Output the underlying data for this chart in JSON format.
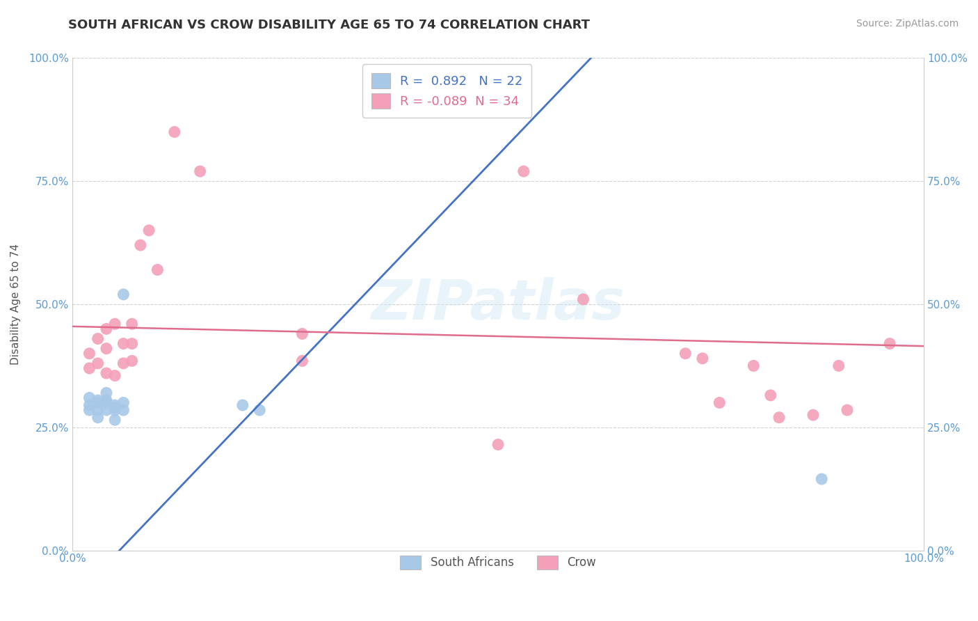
{
  "title": "SOUTH AFRICAN VS CROW DISABILITY AGE 65 TO 74 CORRELATION CHART",
  "source": "Source: ZipAtlas.com",
  "ylabel": "Disability Age 65 to 74",
  "xlim": [
    0.0,
    1.0
  ],
  "ylim": [
    0.0,
    1.0
  ],
  "xtick_labels": [
    "0.0%",
    "100.0%"
  ],
  "ytick_labels": [
    "0.0%",
    "25.0%",
    "50.0%",
    "75.0%",
    "100.0%"
  ],
  "ytick_positions": [
    0.0,
    0.25,
    0.5,
    0.75,
    1.0
  ],
  "blue_color": "#a8c8e8",
  "pink_color": "#f4a0b8",
  "blue_line_color": "#4472c4",
  "pink_line_color": "#e06c8c",
  "R_blue": 0.892,
  "N_blue": 22,
  "R_pink": -0.089,
  "N_pink": 34,
  "blue_scatter_x": [
    0.02,
    0.02,
    0.02,
    0.03,
    0.03,
    0.03,
    0.03,
    0.04,
    0.04,
    0.04,
    0.04,
    0.04,
    0.05,
    0.05,
    0.05,
    0.05,
    0.06,
    0.06,
    0.06,
    0.2,
    0.22,
    0.88
  ],
  "blue_scatter_y": [
    0.295,
    0.31,
    0.285,
    0.3,
    0.305,
    0.285,
    0.27,
    0.305,
    0.32,
    0.285,
    0.3,
    0.3,
    0.285,
    0.29,
    0.295,
    0.265,
    0.285,
    0.3,
    0.52,
    0.295,
    0.285,
    0.145
  ],
  "pink_scatter_x": [
    0.02,
    0.02,
    0.03,
    0.03,
    0.04,
    0.04,
    0.04,
    0.05,
    0.05,
    0.06,
    0.06,
    0.07,
    0.07,
    0.07,
    0.08,
    0.09,
    0.1,
    0.12,
    0.15,
    0.27,
    0.27,
    0.5,
    0.53,
    0.6,
    0.72,
    0.74,
    0.76,
    0.8,
    0.82,
    0.83,
    0.87,
    0.9,
    0.91,
    0.96
  ],
  "pink_scatter_y": [
    0.37,
    0.4,
    0.38,
    0.43,
    0.36,
    0.41,
    0.45,
    0.355,
    0.46,
    0.38,
    0.42,
    0.42,
    0.46,
    0.385,
    0.62,
    0.65,
    0.57,
    0.85,
    0.77,
    0.44,
    0.385,
    0.215,
    0.77,
    0.51,
    0.4,
    0.39,
    0.3,
    0.375,
    0.315,
    0.27,
    0.275,
    0.375,
    0.285,
    0.42
  ],
  "blue_line_x": [
    0.0,
    0.62
  ],
  "blue_line_y": [
    -0.1,
    1.02
  ],
  "pink_line_x": [
    0.0,
    1.0
  ],
  "pink_line_y": [
    0.455,
    0.415
  ],
  "title_fontsize": 13,
  "axis_label_fontsize": 11,
  "tick_fontsize": 11,
  "legend_fontsize": 13,
  "source_fontsize": 10
}
